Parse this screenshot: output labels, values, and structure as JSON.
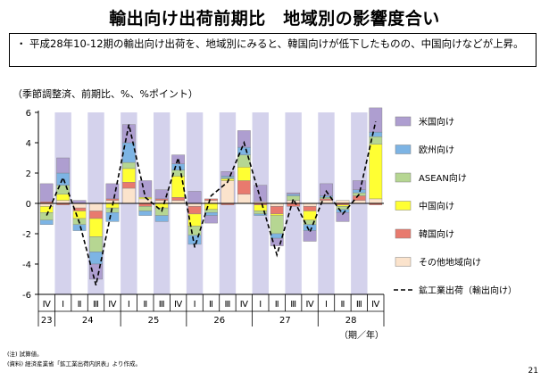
{
  "header": {
    "title": "輸出向け出荷前期比　地域別の影響度合い"
  },
  "summary": {
    "bullet": "・",
    "text": "平成28年10-12期の輸出向け出荷を、地域別にみると、韓国向けが低下したものの、中国向けなどが上昇。"
  },
  "unit_label": "（季節調整済、前期比、%、%ポイント）",
  "notes": {
    "note1": "(注) 試算値。",
    "note2": "(資料) 経済産業省「鉱工業出荷内訳表」より作成。"
  },
  "page_number": "21",
  "chart_data": {
    "type": "bar",
    "stacked": true,
    "ylim": [
      -6,
      6
    ],
    "yticks": [
      6,
      4,
      2,
      0,
      -2,
      -4,
      -6
    ],
    "quarters": [
      "Ⅳ",
      "Ⅰ",
      "Ⅱ",
      "Ⅲ",
      "Ⅳ",
      "Ⅰ",
      "Ⅱ",
      "Ⅲ",
      "Ⅳ",
      "Ⅰ",
      "Ⅱ",
      "Ⅲ",
      "Ⅳ",
      "Ⅰ",
      "Ⅱ",
      "Ⅲ",
      "Ⅳ",
      "Ⅰ",
      "Ⅱ",
      "Ⅲ",
      "Ⅳ"
    ],
    "year_labels": [
      {
        "label": "23",
        "span": [
          0,
          0
        ]
      },
      {
        "label": "24",
        "span": [
          1,
          4
        ]
      },
      {
        "label": "25",
        "span": [
          5,
          8
        ]
      },
      {
        "label": "26",
        "span": [
          9,
          12
        ]
      },
      {
        "label": "27",
        "span": [
          13,
          16
        ]
      },
      {
        "label": "28",
        "span": [
          17,
          20
        ]
      }
    ],
    "period_label": "（期／年）",
    "shaded_columns": [
      1,
      3,
      5,
      7,
      9,
      11,
      13,
      15,
      17,
      19
    ],
    "series": [
      {
        "name": "その他地域向け",
        "color": "#FBE3CC",
        "values": [
          -0.2,
          0.2,
          -0.3,
          -0.5,
          0.2,
          1.0,
          0.3,
          0.2,
          0.2,
          -0.2,
          0.2,
          1.5,
          0.6,
          0.1,
          -0.2,
          0.2,
          -0.2,
          0.2,
          0.2,
          0.2,
          0.3
        ]
      },
      {
        "name": "韓国向け",
        "color": "#E87A6E",
        "values": [
          0.1,
          -0.1,
          -0.2,
          -0.5,
          0.1,
          0.4,
          -0.2,
          0.1,
          0.2,
          -0.5,
          0.1,
          -0.1,
          0.9,
          -0.1,
          -0.5,
          -0.2,
          -0.3,
          0.1,
          -0.1,
          0.3,
          -0.1
        ]
      },
      {
        "name": "中国向け",
        "color": "#FFFF33",
        "values": [
          -0.4,
          0.4,
          -0.5,
          -1.2,
          -0.3,
          0.9,
          0.1,
          -0.3,
          1.4,
          -0.8,
          -0.4,
          0.1,
          0.9,
          -0.4,
          -0.1,
          0.0,
          -0.6,
          0.0,
          -0.1,
          0.0,
          3.6
        ]
      },
      {
        "name": "ASEAN向け",
        "color": "#B6D692",
        "values": [
          -0.5,
          0.6,
          -0.4,
          -1.0,
          -0.3,
          0.4,
          -0.3,
          -0.5,
          0.4,
          -0.6,
          -0.2,
          0.1,
          0.8,
          -0.2,
          -1.2,
          0.3,
          -0.3,
          0.1,
          -0.2,
          0.2,
          0.5
        ]
      },
      {
        "name": "欧州向け",
        "color": "#7DB4E4",
        "values": [
          -0.3,
          0.8,
          -0.4,
          -0.8,
          -0.6,
          1.3,
          -0.3,
          -0.4,
          0.4,
          -0.6,
          -0.2,
          0.1,
          0.5,
          -0.1,
          -0.3,
          0.1,
          -0.4,
          0.1,
          -0.2,
          0.2,
          0.3
        ]
      },
      {
        "name": "米国向け",
        "color": "#AE9ED0",
        "values": [
          1.2,
          1.0,
          0.2,
          -1.0,
          1.0,
          1.2,
          1.1,
          0.6,
          0.6,
          0.8,
          -0.5,
          0.3,
          1.1,
          1.1,
          -0.5,
          0.1,
          -0.7,
          0.8,
          -0.6,
          0.6,
          1.6
        ]
      }
    ],
    "total_series": {
      "name": "鉱工業出荷（輸出向け）",
      "values": [
        -0.8,
        1.7,
        -1.3,
        -5.4,
        -0.2,
        5.2,
        0.4,
        -0.5,
        3.0,
        -2.9,
        0.5,
        1.4,
        4.0,
        0.3,
        -3.4,
        0.3,
        -1.9,
        0.8,
        -0.7,
        0.6,
        5.4
      ]
    },
    "legend": [
      {
        "name": "米国向け",
        "color": "#AE9ED0",
        "kind": "box"
      },
      {
        "name": "欧州向け",
        "color": "#7DB4E4",
        "kind": "box"
      },
      {
        "name": "ASEAN向け",
        "color": "#B6D692",
        "kind": "box"
      },
      {
        "name": "中国向け",
        "color": "#FFFF33",
        "kind": "box"
      },
      {
        "name": "韓国向け",
        "color": "#E87A6E",
        "kind": "box"
      },
      {
        "name": "その他地域向け",
        "color": "#FBE3CC",
        "kind": "box"
      },
      {
        "name": "鉱工業出荷（輸出向け）",
        "color": "#000000",
        "kind": "dash"
      }
    ],
    "band_color": "#D4D2EC"
  }
}
